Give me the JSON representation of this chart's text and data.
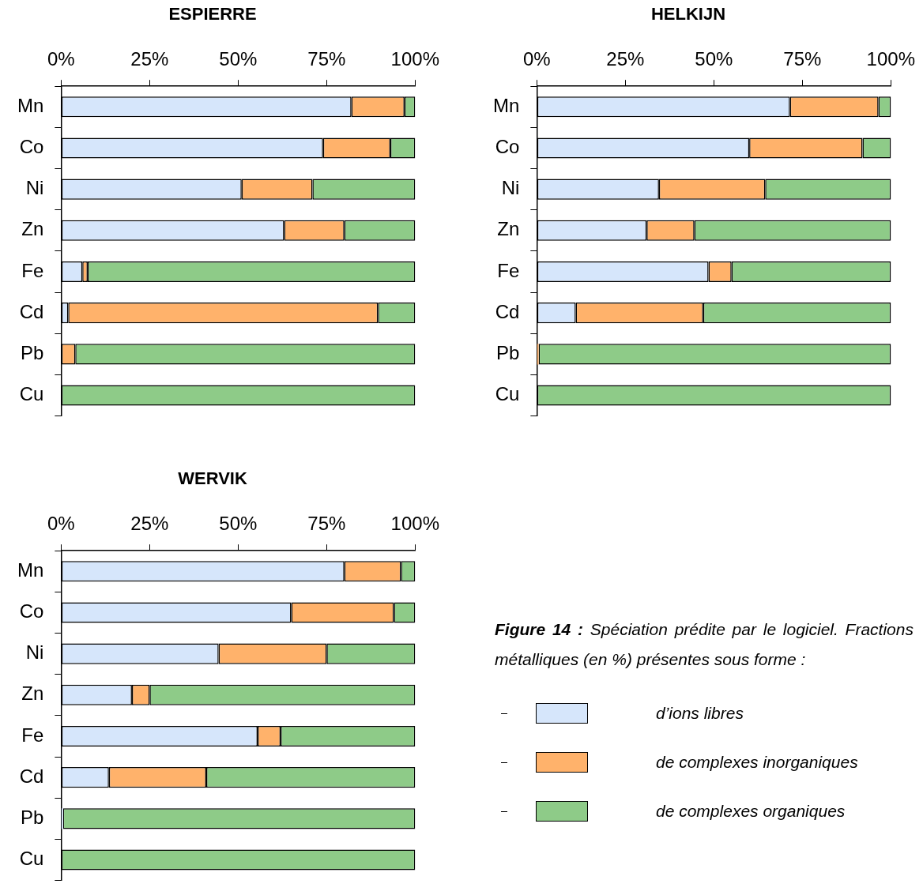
{
  "chart_data": [
    {
      "type": "bar",
      "orientation": "horizontal",
      "stacked": true,
      "title": "ESPIERRE",
      "categories": [
        "Mn",
        "Co",
        "Ni",
        "Zn",
        "Fe",
        "Cd",
        "Pb",
        "Cu"
      ],
      "series": [
        {
          "color": "#d6e6fb",
          "values": [
            82,
            74,
            51,
            63,
            6,
            2,
            0,
            0
          ]
        },
        {
          "color": "#ffb26b",
          "values": [
            15,
            19,
            20,
            17,
            1.5,
            87.5,
            4,
            0
          ]
        },
        {
          "color": "#8ecb88",
          "values": [
            3,
            7,
            29,
            20,
            92.5,
            10.5,
            96,
            100
          ]
        }
      ],
      "xlim": [
        0,
        100
      ],
      "xticks": [
        {
          "value": 0,
          "label": "0%"
        },
        {
          "value": 25,
          "label": "25%"
        },
        {
          "value": 50,
          "label": "50%"
        },
        {
          "value": 75,
          "label": "75%"
        },
        {
          "value": 100,
          "label": "100%"
        }
      ],
      "grid": false
    },
    {
      "type": "bar",
      "orientation": "horizontal",
      "stacked": true,
      "title": "HELKIJN",
      "categories": [
        "Mn",
        "Co",
        "Ni",
        "Zn",
        "Fe",
        "Cd",
        "Pb",
        "Cu"
      ],
      "series": [
        {
          "color": "#d6e6fb",
          "values": [
            71.5,
            60,
            34.5,
            31,
            48.5,
            11,
            0,
            0
          ]
        },
        {
          "color": "#ffb26b",
          "values": [
            25,
            32,
            30,
            13.5,
            6.5,
            36,
            0.5,
            0
          ]
        },
        {
          "color": "#8ecb88",
          "values": [
            3.5,
            8,
            35.5,
            55.5,
            45,
            53,
            99.5,
            100
          ]
        }
      ],
      "xlim": [
        0,
        100
      ],
      "xticks": [
        {
          "value": 0,
          "label": "0%"
        },
        {
          "value": 25,
          "label": "25%"
        },
        {
          "value": 50,
          "label": "50%"
        },
        {
          "value": 75,
          "label": "75%"
        },
        {
          "value": 100,
          "label": "100%"
        }
      ],
      "grid": false
    },
    {
      "type": "bar",
      "orientation": "horizontal",
      "stacked": true,
      "title": "WERVIK",
      "categories": [
        "Mn",
        "Co",
        "Ni",
        "Zn",
        "Fe",
        "Cd",
        "Pb",
        "Cu"
      ],
      "series": [
        {
          "name": "d’ions libres",
          "color": "#d6e6fb",
          "values": [
            80,
            65,
            44.5,
            20,
            55.5,
            13.5,
            0.5,
            0
          ]
        },
        {
          "name": "de complexes inorganiques",
          "color": "#ffb26b",
          "values": [
            16,
            29,
            30.5,
            5,
            6.5,
            27.5,
            0,
            0
          ]
        },
        {
          "name": "de complexes organiques",
          "color": "#8ecb88",
          "values": [
            4,
            6,
            25,
            75,
            38,
            59,
            99.5,
            100
          ]
        }
      ],
      "xlim": [
        0,
        100
      ],
      "xticks": [
        {
          "value": 0,
          "label": "0%"
        },
        {
          "value": 25,
          "label": "25%"
        },
        {
          "value": 50,
          "label": "50%"
        },
        {
          "value": 75,
          "label": "75%"
        },
        {
          "value": 100,
          "label": "100%"
        }
      ],
      "grid": false,
      "legend": "right",
      "annotations": [
        "Figure 14 :",
        "Spéciation prédite par le logiciel. Fractions métalliques (en %) présentes sous forme :"
      ]
    }
  ]
}
